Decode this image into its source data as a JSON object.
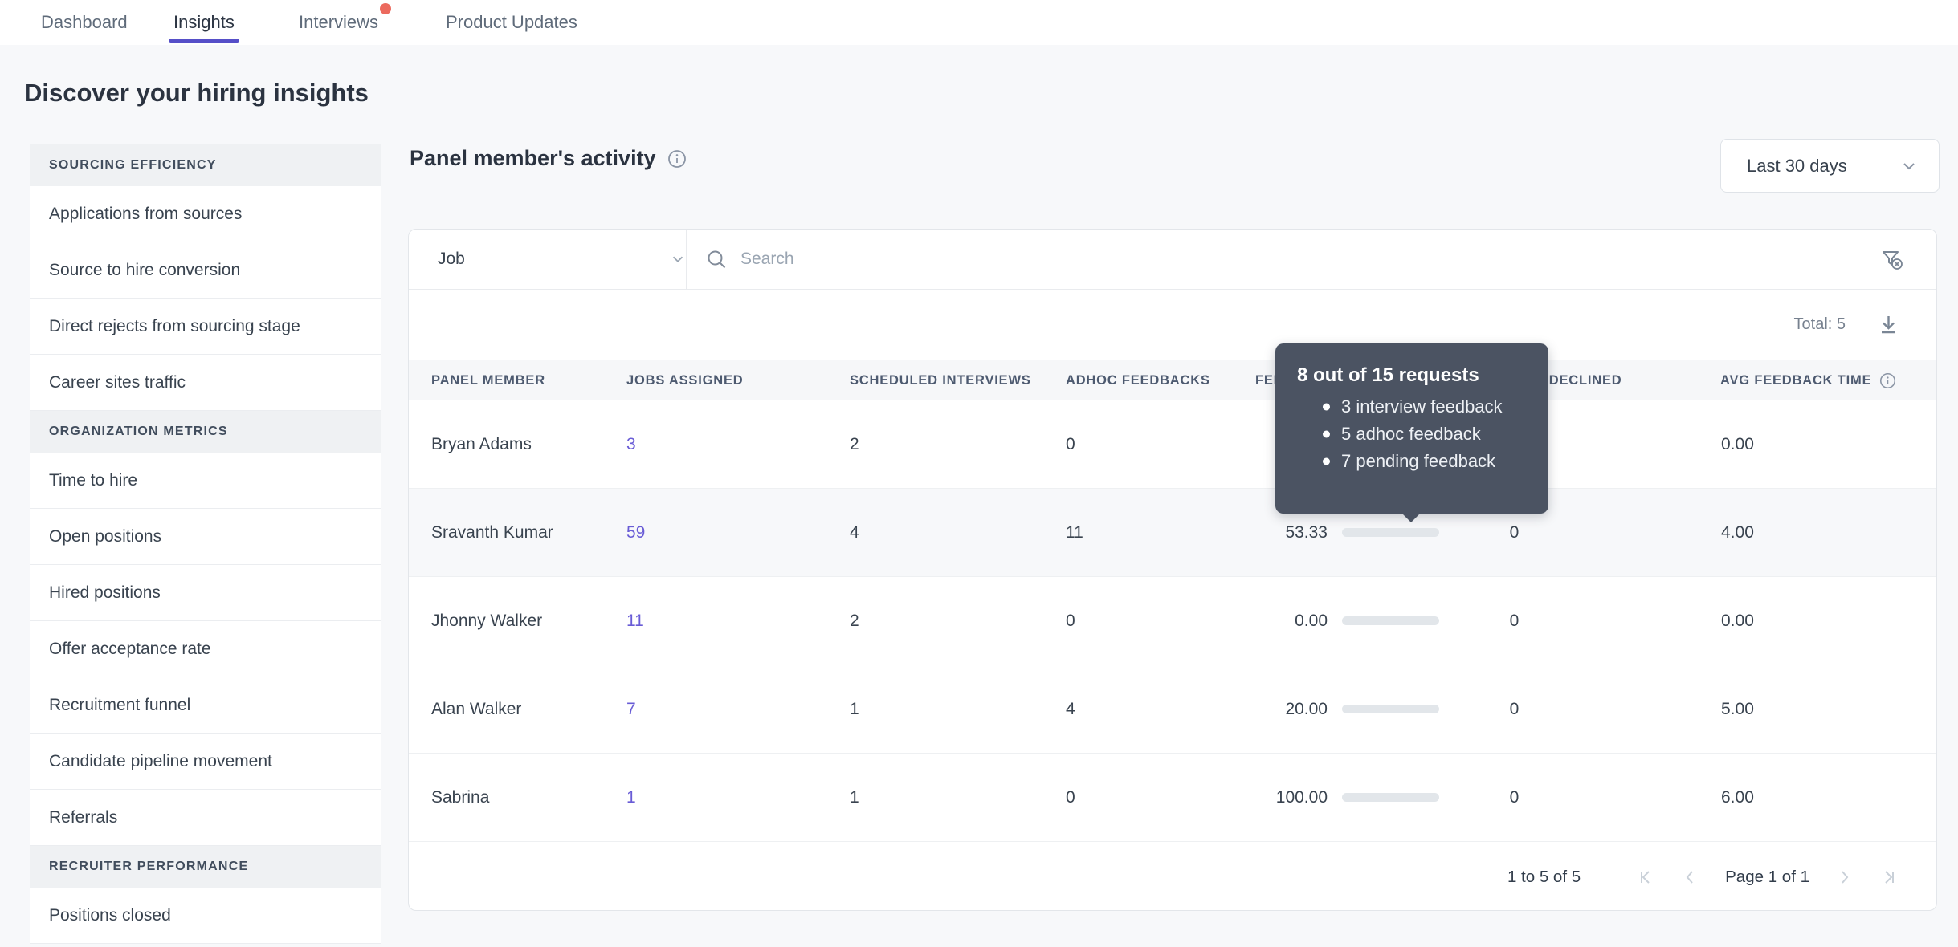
{
  "nav": {
    "tabs": [
      {
        "label": "Dashboard",
        "active": false,
        "notification": false
      },
      {
        "label": "Insights",
        "active": true,
        "notification": false
      },
      {
        "label": "Interviews",
        "active": false,
        "notification": true
      },
      {
        "label": "Product Updates",
        "active": false,
        "notification": false
      }
    ]
  },
  "page_title": "Discover your hiring insights",
  "sidebar": {
    "sections": [
      {
        "header": "SOURCING EFFICIENCY",
        "items": [
          "Applications from sources",
          "Source to hire conversion",
          "Direct rejects from sourcing stage",
          "Career sites traffic"
        ]
      },
      {
        "header": "ORGANIZATION METRICS",
        "items": [
          "Time to hire",
          "Open positions",
          "Hired positions",
          "Offer acceptance rate",
          "Recruitment funnel",
          "Candidate pipeline movement",
          "Referrals"
        ]
      },
      {
        "header": "RECRUITER PERFORMANCE",
        "items": [
          "Positions closed"
        ]
      }
    ]
  },
  "panel": {
    "title": "Panel member's activity",
    "date_range": "Last 30 days",
    "filters": {
      "job_label": "Job",
      "search_placeholder": "Search"
    },
    "total_label": "Total: 5",
    "table": {
      "columns": [
        "PANEL MEMBER",
        "JOBS ASSIGNED",
        "SCHEDULED INTERVIEWS",
        "ADHOC FEEDBACKS",
        "FEEDBACKS SUBMITTED",
        "INTERVIEWS DECLINED",
        "AVG FEEDBACK TIME"
      ],
      "rows": [
        {
          "panel_member": "Bryan Adams",
          "jobs_assigned": "3",
          "scheduled_interviews": "2",
          "adhoc_feedbacks": "0",
          "feedback_value": "",
          "feedback_pct": null,
          "interviews_declined": "",
          "avg_feedback_time": "0.00",
          "highlighted": false
        },
        {
          "panel_member": "Sravanth Kumar",
          "jobs_assigned": "59",
          "scheduled_interviews": "4",
          "adhoc_feedbacks": "11",
          "feedback_value": "53.33",
          "feedback_pct": 53.33,
          "interviews_declined": "0",
          "avg_feedback_time": "4.00",
          "highlighted": true
        },
        {
          "panel_member": "Jhonny Walker",
          "jobs_assigned": "11",
          "scheduled_interviews": "2",
          "adhoc_feedbacks": "0",
          "feedback_value": "0.00",
          "feedback_pct": 0,
          "interviews_declined": "0",
          "avg_feedback_time": "0.00",
          "highlighted": false
        },
        {
          "panel_member": "Alan Walker",
          "jobs_assigned": "7",
          "scheduled_interviews": "1",
          "adhoc_feedbacks": "4",
          "feedback_value": "20.00",
          "feedback_pct": 20,
          "interviews_declined": "0",
          "avg_feedback_time": "5.00",
          "highlighted": false
        },
        {
          "panel_member": "Sabrina",
          "jobs_assigned": "1",
          "scheduled_interviews": "1",
          "adhoc_feedbacks": "0",
          "feedback_value": "100.00",
          "feedback_pct": 100,
          "interviews_declined": "0",
          "avg_feedback_time": "6.00",
          "highlighted": false
        }
      ]
    },
    "pagination": {
      "range": "1 to 5 of 5",
      "page": "Page 1 of 1"
    }
  },
  "tooltip": {
    "title": "8 out of 15 requests",
    "items": [
      "3 interview feedback",
      "5 adhoc feedback",
      "7 pending feedback"
    ]
  },
  "colors": {
    "accent_purple": "#564fc8",
    "link_purple": "#695cd6",
    "bar_teal": "#7cc4cf",
    "tooltip_bg": "#4b5362",
    "notification_red": "#ec6a5e"
  }
}
